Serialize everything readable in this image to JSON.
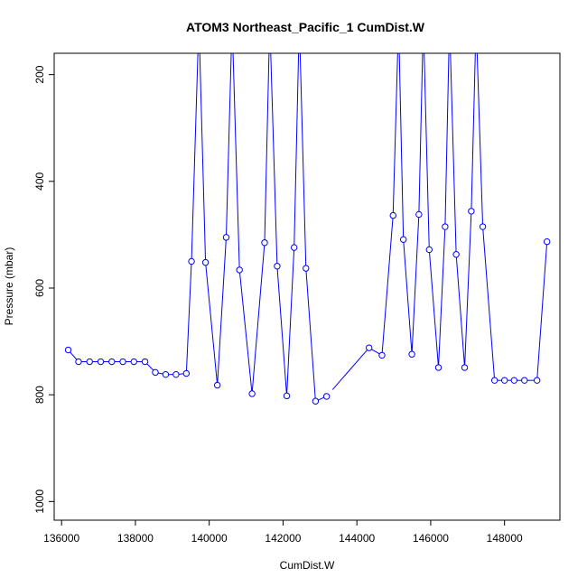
{
  "chart_data": {
    "type": "line",
    "title": "ATOM3 Northeast_Pacific_1 CumDist.W",
    "xlabel": "CumDist.W",
    "ylabel": "Pressure (mbar)",
    "xlim": [
      135800,
      149500
    ],
    "ylim": [
      1035,
      160
    ],
    "y_reversed": true,
    "x_ticks": [
      136000,
      138000,
      140000,
      142000,
      144000,
      146000,
      148000
    ],
    "y_ticks": [
      200,
      400,
      600,
      800,
      1000
    ],
    "x_tick_labels": [
      "136000",
      "138000",
      "140000",
      "142000",
      "144000",
      "146000",
      "148000"
    ],
    "y_tick_labels": [
      "200",
      "400",
      "600",
      "800",
      "1000"
    ],
    "grid": false,
    "series": [
      {
        "color": "#0000ff",
        "marker": "open-circle",
        "x": [
          136180,
          136460,
          136760,
          137060,
          137360,
          137660,
          137960,
          138260,
          138540,
          138820,
          139100,
          139380,
          139520,
          139720,
          139900,
          140220,
          140460,
          140620,
          140820,
          141160,
          141500,
          141640,
          141840,
          142100,
          142300,
          142440,
          142620,
          142880,
          143180,
          144330,
          144680,
          144980,
          145130,
          145260,
          145490,
          145680,
          145800,
          145960,
          146210,
          146390,
          146510,
          146690,
          146920,
          147100,
          147230,
          147410,
          147730,
          148000,
          148260,
          148540,
          148880,
          149150
        ],
        "y": [
          716,
          738,
          738,
          738,
          738,
          738,
          738,
          738,
          758,
          762,
          762,
          760,
          550,
          100,
          552,
          782,
          505,
          100,
          566,
          798,
          515,
          100,
          559,
          802,
          524,
          100,
          563,
          812,
          803,
          712,
          726,
          464,
          100,
          509,
          724,
          462,
          100,
          528,
          749,
          485,
          100,
          537,
          749,
          456,
          100,
          485,
          773,
          773,
          773,
          773,
          773,
          513
        ],
        "gaps_after_x": [
          143180
        ]
      }
    ]
  }
}
